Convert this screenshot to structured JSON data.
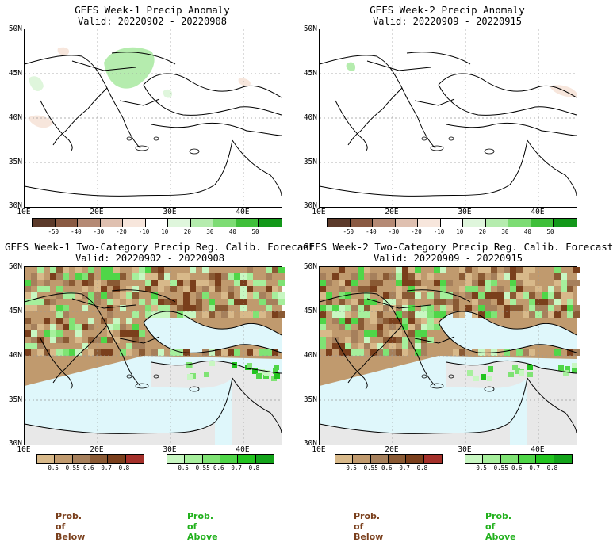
{
  "panels": [
    {
      "title": "GEFS Week-1 Precip Anomaly",
      "valid": "Valid: 20220902 - 20220908"
    },
    {
      "title": "GEFS Week-2 Precip Anomaly",
      "valid": "Valid: 20220909 - 20220915"
    },
    {
      "title": "GEFS Week-1 Two-Category Precip Reg. Calib. Forecast",
      "valid": "Valid: 20220902 - 20220908"
    },
    {
      "title": "GEFS Week-2 Two-Category Precip Reg. Calib. Forecast",
      "valid": "Valid: 20220909 - 20220915"
    }
  ],
  "axes": {
    "lat_labels": [
      "50N",
      "45N",
      "40N",
      "35N",
      "30N"
    ],
    "lon_labels": [
      "10E",
      "20E",
      "30E",
      "40E"
    ]
  },
  "anomaly_scale": {
    "labels": [
      "-50",
      "-40",
      "-30",
      "-20",
      "-10",
      "10",
      "20",
      "30",
      "40",
      "50"
    ],
    "colors": [
      "#5c3a2a",
      "#8a5a43",
      "#b58a75",
      "#dfc0b0",
      "#f7e6dc",
      "#ffffff",
      "#dff6dc",
      "#b5ecae",
      "#7ddc74",
      "#3fbf3a",
      "#13981a"
    ]
  },
  "prob_below_scale": {
    "labels": [
      "0.5",
      "0.55",
      "0.6",
      "0.7",
      "0.8"
    ],
    "colors": [
      "#d8b98a",
      "#c09a6e",
      "#a6805c",
      "#8a5a34",
      "#7a3f1c",
      "#a4302a"
    ]
  },
  "prob_above_scale": {
    "labels": [
      "0.5",
      "0.55",
      "0.6",
      "0.7",
      "0.8"
    ],
    "colors": [
      "#c8f7c2",
      "#a6ef9c",
      "#7fe374",
      "#4fd648",
      "#22c41f",
      "#13a31a"
    ]
  },
  "legend": {
    "below_label": "Prob. of Below",
    "above_label": "Prob. of Above",
    "below_color": "#7a3f1c",
    "above_color": "#22b11d"
  },
  "map_colors": {
    "sea_fill": "#dff7fb",
    "no_data_fill": "#e8e8e8",
    "grid_color": "#999999"
  }
}
